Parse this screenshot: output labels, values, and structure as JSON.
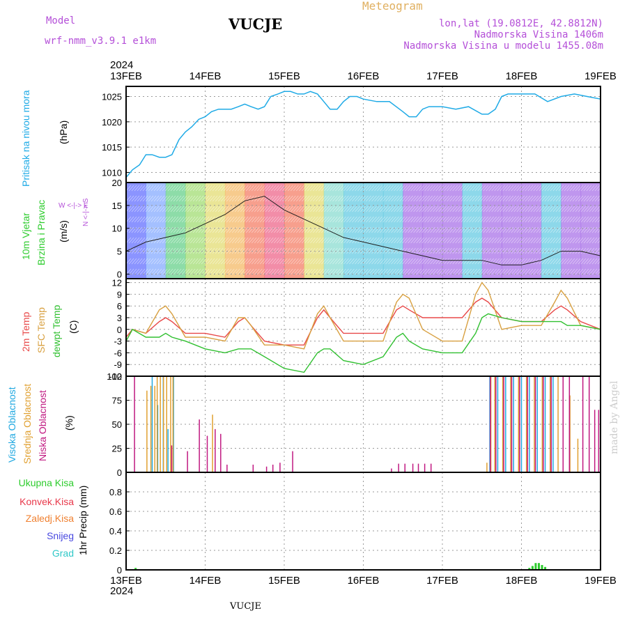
{
  "header": {
    "model_label": "Model",
    "model_name": "wrf-nmm_v3.9.1 e1km",
    "station": "VUCJE",
    "product": "Meteogram",
    "lonlat": "lon,lat (19.0812E, 42.8812N)",
    "elevation": "Nadmorska Visina 1406m",
    "model_elevation": "Nadmorska Visina u modelu 1455.08m"
  },
  "footer": {
    "station": "VUCJE",
    "credit": "made by Angel"
  },
  "colors": {
    "pressure": "#1eaae6",
    "ukupna": "#2ecc2e",
    "konvek": "#e8384a",
    "zaledj": "#f08030",
    "snijeg": "#4848e0",
    "grad": "#30c8c8",
    "t2m": "#e84848",
    "sfc": "#d8a040",
    "dewpt": "#30c030",
    "visoka": "#20a8e0",
    "srednja": "#e0a030",
    "niska": "#c01880"
  },
  "x_axis": {
    "year": "2024",
    "ticks": [
      "13FEB",
      "14FEB",
      "15FEB",
      "16FEB",
      "17FEB",
      "18FEB",
      "19FEB"
    ]
  },
  "panels": {
    "pressure": {
      "label": "Pritisak na nivou mora",
      "unit": "(hPa)"
    },
    "wind": {
      "label1": "10m Vjetar",
      "label2": "Brzina i Pravac",
      "unit": "(m/s)",
      "compass_ns": "N <-|-> S",
      "compass_we": "W <-|-> E"
    },
    "temp": {
      "label1": "2m Temp",
      "label2": "SFC Temp",
      "label3": "dewpt Temp",
      "unit": "(C)"
    },
    "cloud": {
      "label1": "Visoka Oblacnost",
      "label2": "Srednja Oblacnost",
      "label3": "Niska Oblacnost",
      "unit": "(%)"
    },
    "precip": {
      "labels": [
        "Ukupna Kisa",
        "Konvek.Kisa",
        "Zaledj.Kisa",
        "Snijeg",
        "Grad"
      ],
      "unit": "1hr Precip (mm)"
    }
  },
  "chart_data": [
    {
      "type": "line",
      "panel": "pressure",
      "ylabel": "Pritisak na nivou mora (hPa)",
      "ylim": [
        1008,
        1027
      ],
      "yticks": [
        1010,
        1015,
        1020,
        1025
      ],
      "x_days": [
        0,
        0.08,
        0.17,
        0.25,
        0.33,
        0.42,
        0.5,
        0.58,
        0.67,
        0.75,
        0.83,
        0.92,
        1.0,
        1.08,
        1.17,
        1.25,
        1.33,
        1.42,
        1.5,
        1.58,
        1.67,
        1.75,
        1.83,
        1.92,
        2.0,
        2.08,
        2.17,
        2.25,
        2.33,
        2.42,
        2.5,
        2.58,
        2.67,
        2.75,
        2.83,
        2.92,
        3.0,
        3.17,
        3.33,
        3.5,
        3.58,
        3.67,
        3.75,
        3.83,
        3.92,
        4.0,
        4.17,
        4.33,
        4.5,
        4.58,
        4.67,
        4.75,
        4.83,
        5.0,
        5.17,
        5.33,
        5.5,
        5.67,
        5.83,
        6.0
      ],
      "series": [
        {
          "values": [
            1009,
            1010.5,
            1011.5,
            1013.5,
            1013.5,
            1013,
            1013,
            1013.5,
            1016.5,
            1018,
            1019,
            1020.5,
            1021,
            1022,
            1022.5,
            1022.5,
            1022.5,
            1023,
            1023.5,
            1023,
            1022.5,
            1023,
            1025,
            1025.5,
            1026,
            1026,
            1025.5,
            1025.5,
            1026,
            1025.5,
            1024,
            1022.5,
            1022.5,
            1024,
            1025,
            1025,
            1024.5,
            1024,
            1024,
            1022,
            1021,
            1021,
            1022.5,
            1023,
            1023,
            1023,
            1022.5,
            1023,
            1021.5,
            1021.5,
            1022.5,
            1025,
            1025.5,
            1025.5,
            1025.5,
            1024,
            1025,
            1025.5,
            1025,
            1024.5
          ]
        }
      ]
    },
    {
      "type": "line",
      "panel": "wind",
      "ylabel": "10m Vjetar Brzina i Pravac (m/s)",
      "ylim": [
        -1,
        20
      ],
      "yticks": [
        0,
        5,
        10,
        15,
        20
      ],
      "x_days": [
        0,
        0.25,
        0.5,
        0.75,
        1.0,
        1.25,
        1.5,
        1.75,
        2.0,
        2.25,
        2.5,
        2.75,
        3.0,
        3.25,
        3.5,
        3.75,
        4.0,
        4.25,
        4.5,
        4.75,
        5.0,
        5.25,
        5.5,
        5.75,
        6.0
      ],
      "series": [
        {
          "values": [
            5,
            7,
            8,
            9,
            11,
            13,
            16,
            17,
            14,
            12,
            10,
            8,
            7,
            6,
            5,
            4,
            3,
            3,
            3,
            2,
            2,
            3,
            5,
            5,
            4
          ]
        }
      ]
    },
    {
      "type": "line",
      "panel": "temp",
      "ylabel": "(C)",
      "ylim": [
        -12,
        13
      ],
      "yticks": [
        -12,
        -9,
        -6,
        -3,
        0,
        3,
        6,
        9,
        12
      ],
      "x_days": [
        0,
        0.08,
        0.25,
        0.42,
        0.5,
        0.58,
        0.75,
        1.0,
        1.25,
        1.42,
        1.5,
        1.58,
        1.75,
        2.0,
        2.25,
        2.42,
        2.5,
        2.58,
        2.75,
        3.0,
        3.25,
        3.42,
        3.5,
        3.58,
        3.75,
        4.0,
        4.25,
        4.42,
        4.5,
        4.58,
        4.75,
        5.0,
        5.25,
        5.42,
        5.5,
        5.58,
        5.75,
        6.0
      ],
      "series": [
        {
          "values": [
            -2,
            0,
            -1,
            2,
            3,
            2,
            -1,
            -1,
            -2,
            2,
            3,
            1,
            -3,
            -4,
            -4,
            3,
            5,
            3,
            -1,
            -1,
            -1,
            5,
            6,
            5,
            3,
            3,
            3,
            7,
            8,
            7,
            3,
            2,
            2,
            5,
            6,
            5,
            2,
            0
          ]
        },
        {
          "values": [
            -3,
            0,
            -1,
            5,
            6,
            4,
            -2,
            -2,
            -3,
            3,
            3,
            1,
            -4,
            -4,
            -5,
            4,
            6,
            3,
            -3,
            -3,
            -3,
            7,
            9,
            8,
            0,
            -3,
            -3,
            9,
            12,
            10,
            0,
            1,
            1,
            7,
            10,
            8,
            1,
            0
          ]
        },
        {
          "values": [
            -3,
            0,
            -2,
            -2,
            -1,
            -2,
            -3,
            -5,
            -6,
            -5,
            -5,
            -5,
            -7,
            -10,
            -11,
            -6,
            -5,
            -5,
            -8,
            -9,
            -7,
            -2,
            -1,
            -3,
            -5,
            -6,
            -6,
            -1,
            3,
            4,
            3,
            2,
            2,
            2,
            2,
            1,
            1,
            0
          ]
        }
      ]
    },
    {
      "type": "bar",
      "panel": "cloud",
      "ylabel": "(%)",
      "ylim": [
        0,
        100
      ],
      "yticks": [
        0,
        25,
        50,
        75,
        100
      ],
      "series": [
        {
          "x_days": [
            0.33,
            0.4,
            0.47,
            0.53,
            0.6,
            4.6,
            4.7,
            4.8,
            4.9,
            5.0,
            5.1,
            5.2,
            5.3,
            5.4
          ],
          "values": [
            100,
            70,
            100,
            45,
            100,
            100,
            100,
            100,
            100,
            100,
            100,
            100,
            100,
            100
          ]
        },
        {
          "x_days": [
            0.25,
            0.3,
            0.35,
            0.38,
            0.42,
            0.46,
            0.5,
            0.55,
            0.58,
            1.08,
            4.55,
            4.6,
            4.65,
            4.75,
            4.85,
            4.95,
            5.05,
            5.15,
            5.25,
            5.35,
            5.45,
            5.6,
            5.7
          ],
          "values": [
            85,
            90,
            90,
            100,
            100,
            100,
            100,
            100,
            100,
            60,
            10,
            100,
            100,
            100,
            100,
            100,
            100,
            100,
            100,
            100,
            100,
            80,
            35
          ]
        },
        {
          "x_days": [
            0.08,
            0.55,
            0.75,
            0.9,
            1.0,
            1.1,
            1.17,
            1.25,
            1.58,
            1.75,
            1.83,
            1.92,
            2.08,
            2.33,
            2.58,
            3.33,
            3.42,
            3.5,
            3.6,
            3.67,
            3.75,
            3.83,
            4.58,
            4.65,
            4.75,
            4.85,
            4.95,
            5.05,
            5.15,
            5.25,
            5.35,
            5.5,
            5.58,
            5.75,
            5.83,
            5.9,
            5.95
          ],
          "values": [
            100,
            28,
            22,
            55,
            38,
            45,
            40,
            8,
            8,
            6,
            8,
            10,
            22,
            0,
            0,
            4,
            9,
            9,
            9,
            9,
            9,
            9,
            100,
            100,
            100,
            100,
            100,
            100,
            100,
            100,
            100,
            100,
            100,
            100,
            100,
            65,
            65
          ]
        }
      ]
    },
    {
      "type": "bar",
      "panel": "precip",
      "ylabel": "1hr Precip (mm)",
      "ylim": [
        0,
        1
      ],
      "yticks": [
        0,
        0.2,
        0.4,
        0.6,
        0.8
      ],
      "series": [
        {
          "x_days": [
            0.12,
            5.1,
            5.14,
            5.18,
            5.22,
            5.26,
            5.3
          ],
          "values": [
            0.02,
            0.02,
            0.04,
            0.07,
            0.07,
            0.05,
            0.03
          ]
        }
      ]
    }
  ]
}
